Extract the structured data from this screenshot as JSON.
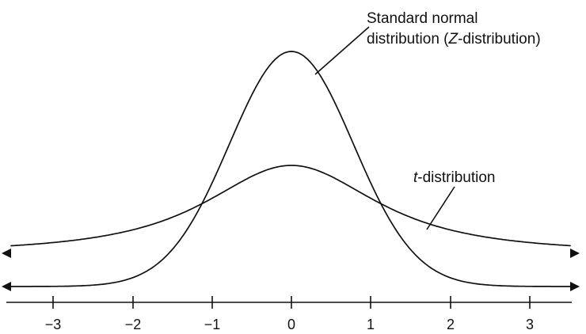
{
  "diagram": {
    "ticks": [
      "−3",
      "−2",
      "−1",
      "0",
      "1",
      "2",
      "3"
    ],
    "labels": {
      "normal_line1": "Standard normal",
      "normal_line2_prefix": "distribution (",
      "normal_line2_z": "Z",
      "normal_line2_suffix": "-distribution)",
      "t_italic": "t",
      "t_suffix": "-distribution"
    }
  },
  "chart_data": {
    "type": "line",
    "x_ticks": [
      -3,
      -2,
      -1,
      0,
      1,
      2,
      3
    ],
    "series": [
      {
        "name": "Standard normal distribution (Z-distribution)",
        "kind": "normal",
        "peak": 0
      },
      {
        "name": "t-distribution",
        "kind": "t",
        "peak": 0
      }
    ],
    "arrows": "both-ends",
    "grid": false,
    "legend": "none"
  }
}
